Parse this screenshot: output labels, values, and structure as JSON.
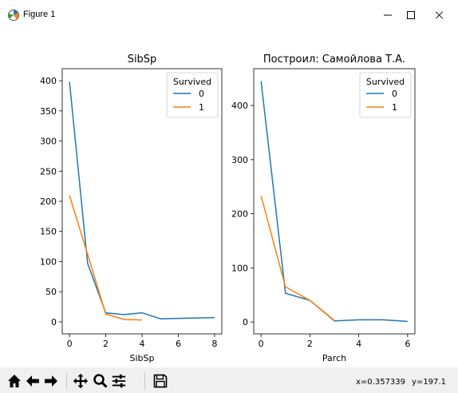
{
  "window": {
    "title": "Figure 1",
    "minimize_glyph": "—",
    "maximize_glyph": "☐",
    "close_glyph": "✕"
  },
  "toolbar": {
    "icons": [
      "home-icon",
      "back-arrow-icon",
      "forward-arrow-icon",
      "pan-icon",
      "zoom-icon",
      "configure-subplots-icon",
      "save-icon"
    ],
    "coords_x": "x=0.357339",
    "coords_y": "y=197.1"
  },
  "colors": {
    "series0": "#1f77b4",
    "series1": "#ff7f0e"
  },
  "chart_data": [
    {
      "type": "line",
      "title": "SibSp",
      "xlabel": "SibSp",
      "ylabel": "",
      "xlim": [
        -0.4,
        8.4
      ],
      "ylim": [
        -20,
        420
      ],
      "xticks": [
        0,
        2,
        4,
        6,
        8
      ],
      "yticks": [
        0,
        50,
        100,
        150,
        200,
        250,
        300,
        350,
        400
      ],
      "legend": {
        "title": "Survived",
        "placement": "top-right"
      },
      "series": [
        {
          "name": "0",
          "x": [
            0,
            1,
            2,
            3,
            4,
            5,
            8
          ],
          "y": [
            398,
            97,
            15,
            12,
            15,
            5,
            7
          ]
        },
        {
          "name": "1",
          "x": [
            0,
            1,
            2,
            3,
            4
          ],
          "y": [
            210,
            112,
            13,
            4,
            3
          ]
        }
      ]
    },
    {
      "type": "line",
      "title": "Построил: Самойлова Т.А.",
      "xlabel": "Parch",
      "ylabel": "",
      "xlim": [
        -0.3,
        6.3
      ],
      "ylim": [
        -22,
        468
      ],
      "xticks": [
        0,
        2,
        4,
        6
      ],
      "yticks": [
        0,
        100,
        200,
        300,
        400
      ],
      "legend": {
        "title": "Survived",
        "placement": "top-right"
      },
      "series": [
        {
          "name": "0",
          "x": [
            0,
            1,
            2,
            3,
            4,
            5,
            6
          ],
          "y": [
            445,
            53,
            40,
            2,
            4,
            4,
            1
          ]
        },
        {
          "name": "1",
          "x": [
            0,
            1,
            2,
            3
          ],
          "y": [
            233,
            65,
            40,
            3
          ]
        }
      ]
    }
  ]
}
